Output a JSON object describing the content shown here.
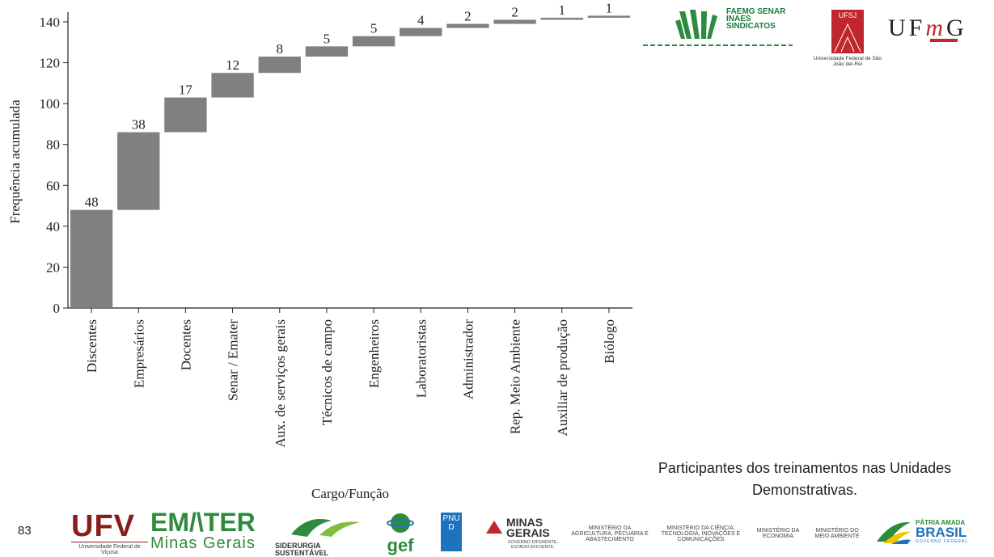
{
  "chart_data": {
    "type": "bar",
    "subtype": "waterfall",
    "categories": [
      "Discentes",
      "Empresários",
      "Docentes",
      "Senar / Emater",
      "Aux. de serviços gerais",
      "Técnicos de campo",
      "Engenheiros",
      "Laboratoristas",
      "Administrador",
      "Rep. Meio Ambiente",
      "Auxiliar de produção",
      "Biólogo"
    ],
    "values": [
      48,
      38,
      17,
      12,
      8,
      5,
      5,
      4,
      2,
      2,
      1,
      1
    ],
    "cumulative": [
      48,
      86,
      103,
      115,
      123,
      128,
      133,
      137,
      139,
      141,
      142,
      143
    ],
    "xlabel": "Cargo/Função",
    "ylabel": "Frequência  acumulada",
    "ylim": [
      0,
      140
    ],
    "yticks": [
      0,
      20,
      40,
      60,
      80,
      100,
      120,
      140
    ],
    "bar_color": "#808080",
    "grid": false
  },
  "caption": "Participantes dos treinamentos nas Unidades Demonstrativas.",
  "page_number": "83",
  "header_logos": {
    "faemg": "FAEMG SENAR INAES SINDICATOS",
    "ufsj_box": "UFSJ",
    "ufsj_caption": "Universidade Federal de São João del-Rei",
    "ufmg_prefix": "UF",
    "ufmg_m": "m",
    "ufmg_suffix": "G"
  },
  "footer_logos": {
    "ufv": "UFV",
    "ufv_caption": "Universidade Federal de Viçosa",
    "emater_1": "EM/\\TER",
    "emater_2": "Minas Gerais",
    "siderurgia": "SIDERURGIA SUSTENTÁVEL",
    "gef": "gef",
    "pnud": "PNUD",
    "minas_gerais": "MINAS GERAIS",
    "minas_sub": "GOVERNO DIFERENTE. ESTADO EFICIENTE.",
    "min_agri": "MINISTÉRIO DA AGRICULTURA, PECUÁRIA E ABASTECIMENTO",
    "min_ciencia": "MINISTÉRIO DA CIÊNCIA, TECNOLOGIA, INOVAÇÕES E COMUNICAÇÕES",
    "min_economia": "MINISTÉRIO DA ECONOMIA",
    "min_meio": "MINISTÉRIO DO MEIO AMBIENTE",
    "patria_1": "PÁTRIA AMADA",
    "patria_2": "BRASIL",
    "patria_3": "GOVERNO FEDERAL"
  },
  "colors": {
    "bar": "#808080",
    "green": "#2e8b3d",
    "red": "#c0272d",
    "accent_blue": "#1e73be"
  }
}
